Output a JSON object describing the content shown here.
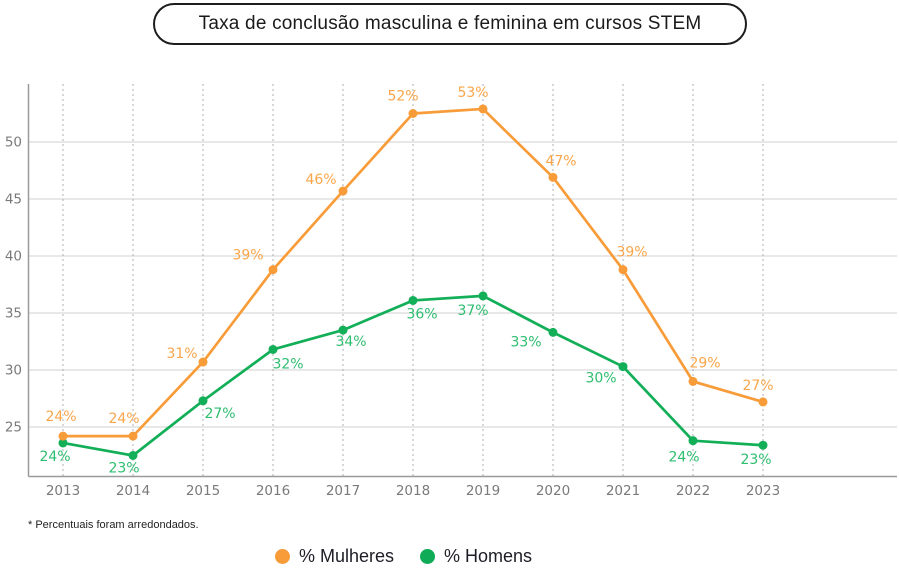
{
  "title": "Taxa de conclusão masculina e feminina em cursos STEM",
  "footnote": "* Percentuais foram arredondados.",
  "legend": [
    {
      "label": "% Mulheres",
      "color": "#F89C3A"
    },
    {
      "label": "% Homens",
      "color": "#10AB56"
    }
  ],
  "colors": {
    "women_line": "#F89C3A",
    "women_label": "#F9A64B",
    "men_line": "#12AF58",
    "men_label": "#2EBE70",
    "axis_text": "#7a7a7a",
    "gridline": "#d2d2d2",
    "dashed_gridline": "#b0b0b0",
    "axis_line": "#9a9a9a",
    "title_text": "#1a1a1a"
  },
  "chart_data": {
    "type": "line",
    "title": "Taxa de conclusão masculina e feminina em cursos STEM",
    "categories": [
      "2013",
      "2014",
      "2015",
      "2016",
      "2017",
      "2018",
      "2019",
      "2020",
      "2021",
      "2022",
      "2023"
    ],
    "series": [
      {
        "name": "% Mulheres",
        "color": "#F89C3A",
        "label_color": "#F9A64B",
        "labels": [
          "24%",
          "24%",
          "31%",
          "39%",
          "46%",
          "52%",
          "53%",
          "47%",
          "39%",
          "29%",
          "27%"
        ],
        "values": [
          24.2,
          24.2,
          30.7,
          38.8,
          45.7,
          52.5,
          52.9,
          46.9,
          38.8,
          29.0,
          27.2
        ],
        "label_offsets": [
          [
            -2,
            -20
          ],
          [
            -9,
            -18
          ],
          [
            -21,
            -9
          ],
          [
            -25,
            -15
          ],
          [
            -22,
            -12
          ],
          [
            -10,
            -18
          ],
          [
            -10,
            -17
          ],
          [
            8,
            -17
          ],
          [
            9,
            -18
          ],
          [
            12,
            -19
          ],
          [
            -5,
            -17
          ]
        ]
      },
      {
        "name": "% Homens",
        "color": "#12AF58",
        "label_color": "#2EBE70",
        "labels": [
          "24%",
          "23%",
          "27%",
          "32%",
          "34%",
          "36%",
          "37%",
          "33%",
          "30%",
          "24%",
          "23%"
        ],
        "values": [
          23.6,
          22.5,
          27.3,
          31.8,
          33.5,
          36.1,
          36.5,
          33.3,
          30.3,
          23.8,
          23.4
        ],
        "label_offsets": [
          [
            -8,
            13
          ],
          [
            -9,
            12
          ],
          [
            17,
            12
          ],
          [
            15,
            14
          ],
          [
            8,
            11
          ],
          [
            9,
            13
          ],
          [
            -10,
            14
          ],
          [
            -27,
            9
          ],
          [
            -22,
            11
          ],
          [
            -9,
            16
          ],
          [
            -7,
            14
          ]
        ]
      }
    ],
    "yticks": [
      25,
      30,
      35,
      40,
      45,
      50
    ],
    "ylim": [
      20.6,
      54.9
    ],
    "grid": {
      "horizontal": "solid",
      "vertical": "dashed"
    },
    "legend_position": "bottom-center",
    "note": "* Percentuais foram arredondados."
  }
}
